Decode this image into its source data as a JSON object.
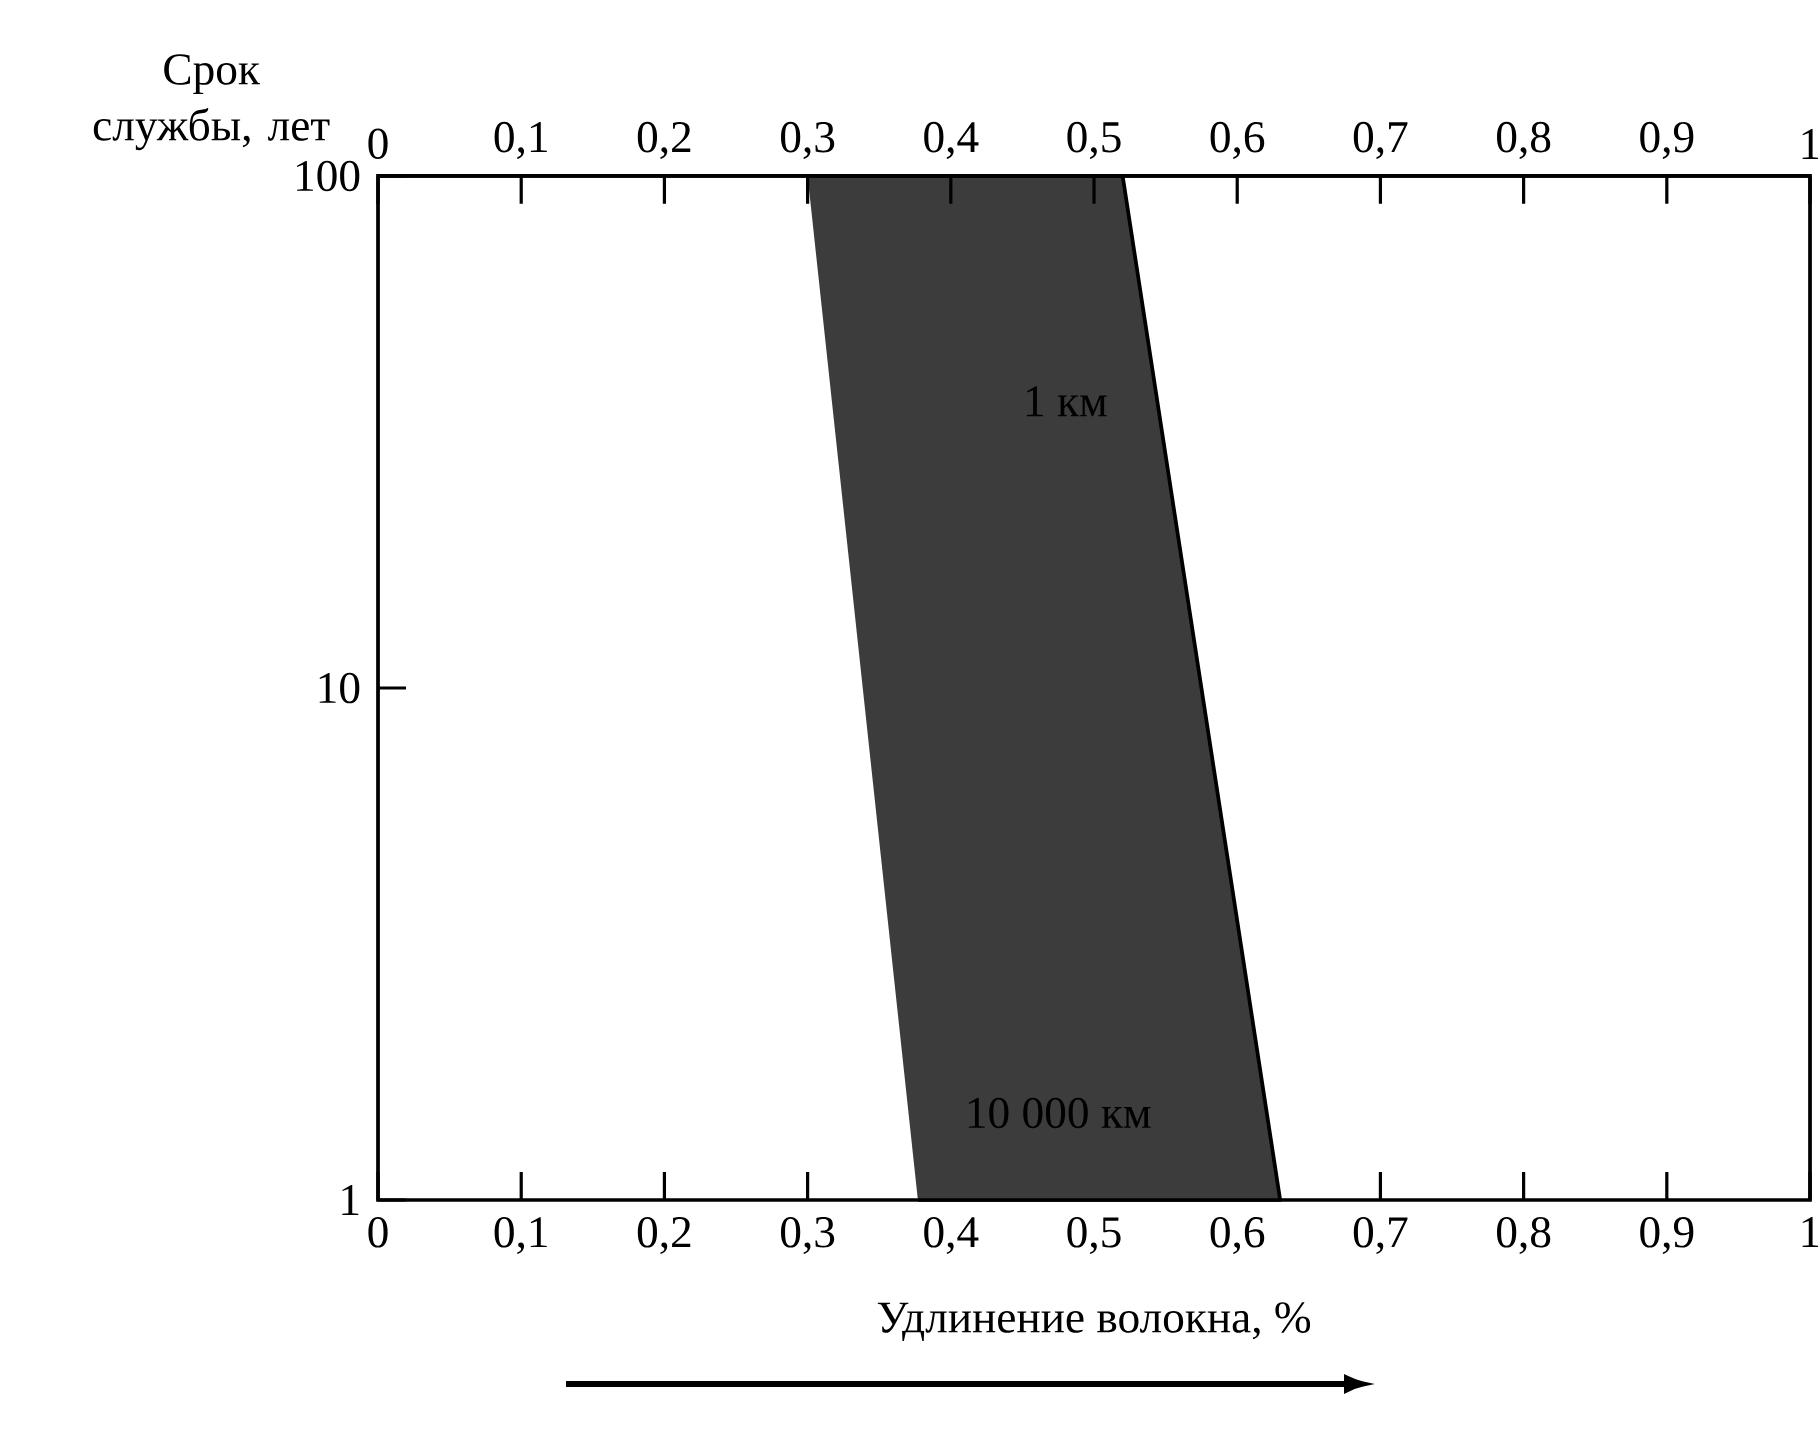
{
  "chart_data": {
    "type": "area",
    "xlabel": "Удлинение волокна, %",
    "ylabel": "Срок службы, лет",
    "xlim": [
      0,
      1
    ],
    "ylim": [
      1,
      100
    ],
    "log": "y",
    "xticks": [
      {
        "value": 0,
        "label": "0"
      },
      {
        "value": 0.1,
        "label": "0,1"
      },
      {
        "value": 0.2,
        "label": "0,2"
      },
      {
        "value": 0.3,
        "label": "0,3"
      },
      {
        "value": 0.4,
        "label": "0,4"
      },
      {
        "value": 0.5,
        "label": "0,5"
      },
      {
        "value": 0.6,
        "label": "0,6"
      },
      {
        "value": 0.7,
        "label": "0,7"
      },
      {
        "value": 0.8,
        "label": "0,8"
      },
      {
        "value": 0.9,
        "label": "0,9"
      },
      {
        "value": 1,
        "label": "1"
      }
    ],
    "x2lim": [
      0,
      1
    ],
    "x2ticks": [
      {
        "value": 0,
        "label": "0"
      },
      {
        "value": 0.1,
        "label": "0,1"
      },
      {
        "value": 0.2,
        "label": "0,2"
      },
      {
        "value": 0.3,
        "label": "0,3"
      },
      {
        "value": 0.4,
        "label": "0,4"
      },
      {
        "value": 0.5,
        "label": "0,5"
      },
      {
        "value": 0.6,
        "label": "0,6"
      },
      {
        "value": 0.7,
        "label": "0,7"
      },
      {
        "value": 0.8,
        "label": "0,8"
      },
      {
        "value": 0.9,
        "label": "0,9"
      },
      {
        "value": 1,
        "label": "1"
      }
    ],
    "yticks": [
      1,
      10,
      100
    ],
    "series": [
      {
        "color": "#3c3c3c",
        "x": [
          0.3,
          0.52,
          0.63,
          0.377
        ],
        "values": [
          100,
          100,
          1,
          1
        ]
      }
    ],
    "annotations": [
      "1 км",
      "10 000 км"
    ],
    "grid": false
  }
}
